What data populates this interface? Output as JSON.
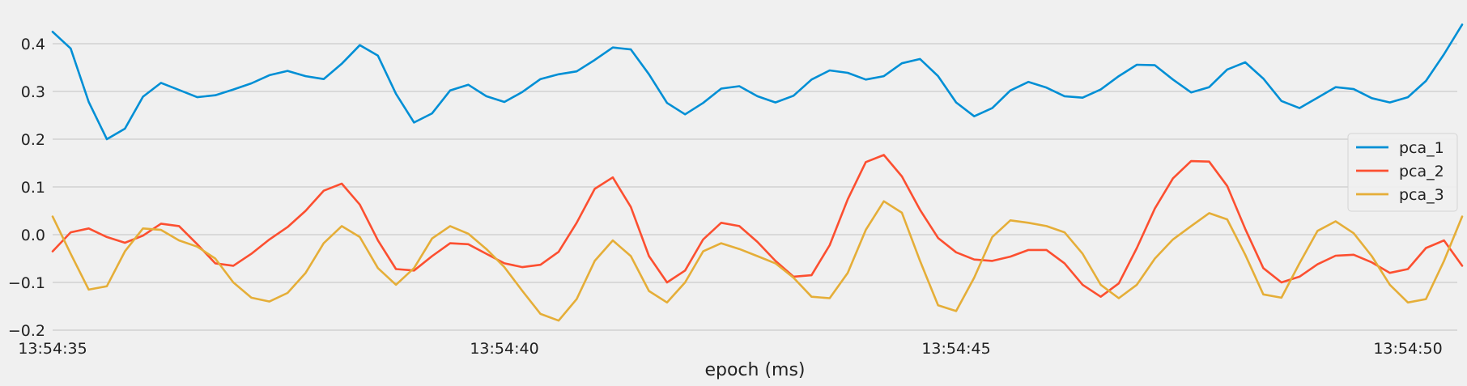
{
  "chart_data": {
    "type": "line",
    "xlabel": "epoch (ms)",
    "ylabel": "",
    "title": "",
    "x_start": "13:54:35",
    "x_end": "13:54:50.4",
    "x_step_seconds": 0.2,
    "x_ticks": [
      {
        "label": "13:54:35",
        "seconds": 0
      },
      {
        "label": "13:54:40",
        "seconds": 5
      },
      {
        "label": "13:54:45",
        "seconds": 10
      },
      {
        "label": "13:54:50",
        "seconds": 15
      }
    ],
    "ylim": [
      -0.2,
      0.45
    ],
    "y_ticks": [
      {
        "label": "−0.2",
        "value": -0.2
      },
      {
        "label": "−0.1",
        "value": -0.1
      },
      {
        "label": "0.0",
        "value": 0.0
      },
      {
        "label": "0.1",
        "value": 0.1
      },
      {
        "label": "0.2",
        "value": 0.2
      },
      {
        "label": "0.3",
        "value": 0.3
      },
      {
        "label": "0.4",
        "value": 0.4
      }
    ],
    "grid": true,
    "legend_position": "right",
    "series": [
      {
        "name": "pca_1",
        "color": "#008fd5",
        "values": [
          0.425,
          0.39,
          0.278,
          0.2,
          0.222,
          0.289,
          0.318,
          0.303,
          0.288,
          0.292,
          0.304,
          0.317,
          0.334,
          0.343,
          0.332,
          0.326,
          0.358,
          0.397,
          0.375,
          0.295,
          0.235,
          0.254,
          0.302,
          0.314,
          0.29,
          0.278,
          0.299,
          0.326,
          0.336,
          0.342,
          0.366,
          0.392,
          0.388,
          0.336,
          0.276,
          0.252,
          0.276,
          0.306,
          0.311,
          0.29,
          0.277,
          0.291,
          0.325,
          0.344,
          0.339,
          0.325,
          0.332,
          0.359,
          0.368,
          0.332,
          0.277,
          0.248,
          0.265,
          0.302,
          0.32,
          0.308,
          0.29,
          0.287,
          0.304,
          0.332,
          0.356,
          0.355,
          0.325,
          0.298,
          0.309,
          0.346,
          0.361,
          0.327,
          0.28,
          0.265,
          0.287,
          0.309,
          0.305,
          0.286,
          0.277,
          0.288,
          0.322,
          0.378,
          0.44
        ]
      },
      {
        "name": "pca_2",
        "color": "#fc4f30",
        "values": [
          -0.035,
          0.005,
          0.013,
          -0.005,
          -0.017,
          -0.002,
          0.023,
          0.018,
          -0.02,
          -0.06,
          -0.065,
          -0.04,
          -0.01,
          0.016,
          0.05,
          0.092,
          0.107,
          0.063,
          -0.012,
          -0.072,
          -0.075,
          -0.045,
          -0.018,
          -0.02,
          -0.04,
          -0.06,
          -0.068,
          -0.063,
          -0.036,
          0.025,
          0.096,
          0.12,
          0.058,
          -0.045,
          -0.1,
          -0.075,
          -0.01,
          0.025,
          0.018,
          -0.015,
          -0.055,
          -0.088,
          -0.085,
          -0.022,
          0.074,
          0.152,
          0.167,
          0.122,
          0.052,
          -0.007,
          -0.037,
          -0.052,
          -0.055,
          -0.046,
          -0.032,
          -0.032,
          -0.06,
          -0.105,
          -0.13,
          -0.102,
          -0.028,
          0.055,
          0.118,
          0.154,
          0.153,
          0.102,
          0.012,
          -0.07,
          -0.1,
          -0.088,
          -0.062,
          -0.044,
          -0.042,
          -0.058,
          -0.08,
          -0.072,
          -0.028,
          -0.012,
          -0.065
        ]
      },
      {
        "name": "pca_3",
        "color": "#e5ae38",
        "values": [
          0.038,
          -0.04,
          -0.115,
          -0.108,
          -0.035,
          0.013,
          0.01,
          -0.012,
          -0.025,
          -0.05,
          -0.1,
          -0.132,
          -0.14,
          -0.122,
          -0.08,
          -0.018,
          0.018,
          -0.005,
          -0.07,
          -0.105,
          -0.07,
          -0.008,
          0.018,
          0.002,
          -0.03,
          -0.068,
          -0.118,
          -0.166,
          -0.18,
          -0.135,
          -0.055,
          -0.012,
          -0.045,
          -0.118,
          -0.142,
          -0.1,
          -0.035,
          -0.018,
          -0.03,
          -0.045,
          -0.06,
          -0.09,
          -0.13,
          -0.133,
          -0.08,
          0.01,
          0.07,
          0.046,
          -0.055,
          -0.148,
          -0.16,
          -0.09,
          -0.005,
          0.03,
          0.025,
          0.018,
          0.005,
          -0.04,
          -0.105,
          -0.133,
          -0.105,
          -0.05,
          -0.01,
          0.018,
          0.045,
          0.032,
          -0.042,
          -0.125,
          -0.132,
          -0.06,
          0.008,
          0.028,
          0.003,
          -0.045,
          -0.105,
          -0.142,
          -0.135,
          -0.055,
          0.038
        ]
      }
    ]
  }
}
